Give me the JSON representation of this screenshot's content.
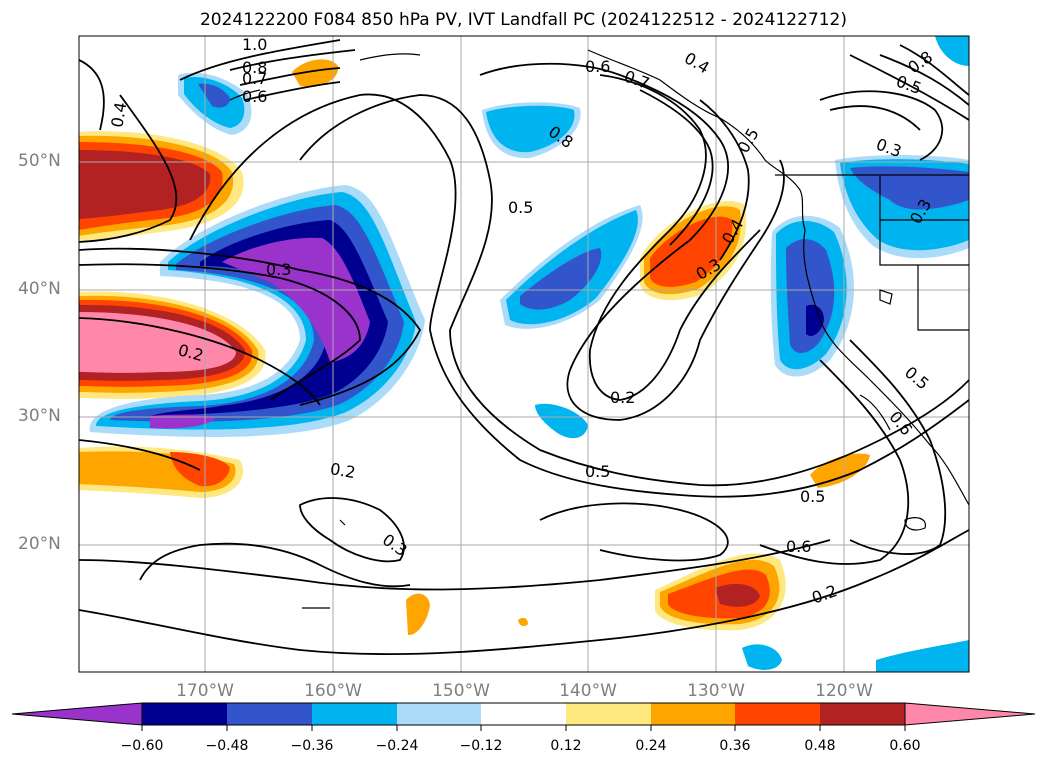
{
  "title": "2024122200 F084 850 hPa PV, IVT Landfall PC (2024122512 - 2024122712)",
  "lat_labels": [
    "50°N",
    "40°N",
    "30°N",
    "20°N"
  ],
  "lon_labels": [
    "170°W",
    "160°W",
    "150°W",
    "140°W",
    "130°W",
    "120°W"
  ],
  "contour_labels": [
    "1.0",
    "0.8",
    "0.7",
    "0.6",
    "0.4",
    "0.3",
    "0.2",
    "0.5",
    "0.6",
    "0.7",
    "0.4",
    "0.8",
    "0.5",
    "0.3",
    "0.4",
    "0.3",
    "0.2",
    "0.5",
    "0.2",
    "0.3",
    "0.8",
    "0.5",
    "0.3",
    "0.5",
    "0.6",
    "0.5",
    "0.6",
    "0.2"
  ],
  "colorbar": {
    "ticks": [
      "−0.60",
      "−0.48",
      "−0.36",
      "−0.24",
      "−0.12",
      "0.12",
      "0.24",
      "0.36",
      "0.48",
      "0.60"
    ],
    "colors": [
      "#9933cc",
      "#000090",
      "#3355cc",
      "#00b4f0",
      "#aadcfa",
      "#ffffff",
      "#ffe880",
      "#ffa500",
      "#ff4400",
      "#b22222",
      "#ff88aa"
    ]
  },
  "shading_colors": {
    "neg_purple": "#9933cc",
    "neg_navy": "#000090",
    "neg_blue": "#3355cc",
    "neg_cyan": "#00b4f0",
    "neg_lightblue": "#aadcfa",
    "pos_yellow": "#ffe880",
    "pos_orange": "#ffa500",
    "pos_redorange": "#ff4400",
    "pos_darkred": "#b22222",
    "pos_pink": "#ff88aa"
  }
}
